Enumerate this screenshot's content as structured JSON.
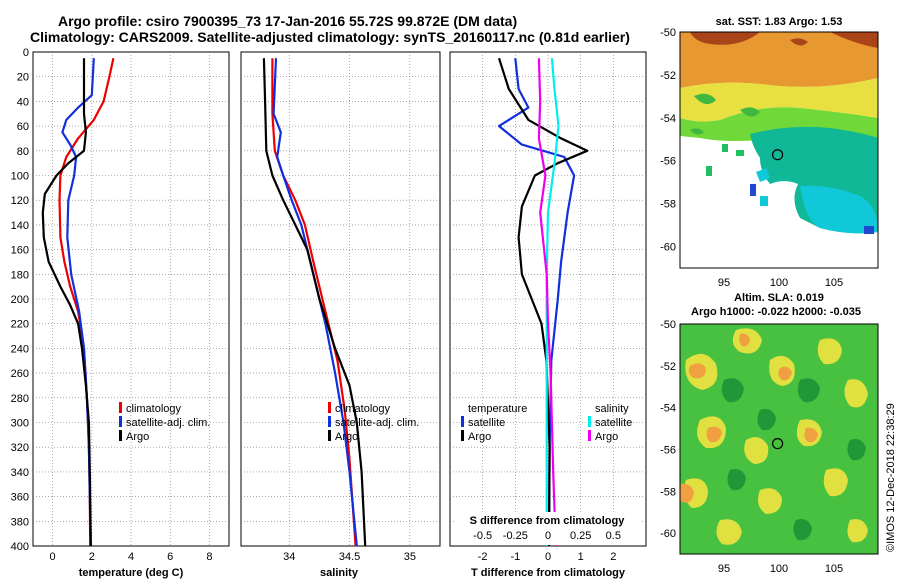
{
  "figure": {
    "title_line1": "Argo profile: csiro 7900395_73 17-Jan-2016 55.72S 99.872E (DM data)",
    "title_line2": "Climatology: CARS2009. Satellite-adjusted climatology: synTS_20160117.nc (0.81d earlier)",
    "credit": "©IMOS 12-Dec-2018 22:38:29"
  },
  "colors": {
    "climatology": "#ee0000",
    "satellite": "#1030dd",
    "argo": "#000000",
    "sat_salinity": "#00eeee",
    "argo_salinity": "#ee00ee"
  },
  "chart_data": [
    {
      "type": "line",
      "name": "temperature-profile",
      "xlabel": "temperature (deg C)",
      "ylabel": "depth",
      "xlim": [
        -1,
        9
      ],
      "ylim": [
        400,
        0
      ],
      "xticks": [
        0,
        2,
        4,
        6,
        8
      ],
      "yticks": [
        0,
        20,
        40,
        60,
        80,
        100,
        120,
        140,
        160,
        180,
        200,
        220,
        240,
        260,
        280,
        300,
        320,
        340,
        360,
        380,
        400
      ],
      "grid": true,
      "legend": [
        "climatology",
        "satellite-adj. clim.",
        "Argo"
      ],
      "series": [
        {
          "name": "climatology",
          "color": "climatology",
          "points": [
            [
              3.1,
              5
            ],
            [
              2.9,
              20
            ],
            [
              2.6,
              40
            ],
            [
              2.1,
              55
            ],
            [
              1.3,
              70
            ],
            [
              0.7,
              85
            ],
            [
              0.4,
              100
            ],
            [
              0.35,
              120
            ],
            [
              0.4,
              150
            ],
            [
              0.6,
              170
            ],
            [
              0.9,
              190
            ],
            [
              1.3,
              210
            ],
            [
              1.6,
              240
            ],
            [
              1.75,
              280
            ],
            [
              1.85,
              320
            ],
            [
              1.9,
              360
            ],
            [
              1.92,
              400
            ]
          ]
        },
        {
          "name": "satellite-adj. clim.",
          "color": "satellite",
          "points": [
            [
              2.1,
              5
            ],
            [
              2.05,
              20
            ],
            [
              2.0,
              35
            ],
            [
              1.3,
              45
            ],
            [
              0.7,
              55
            ],
            [
              0.5,
              65
            ],
            [
              0.9,
              75
            ],
            [
              1.2,
              85
            ],
            [
              1.1,
              100
            ],
            [
              0.8,
              120
            ],
            [
              0.75,
              150
            ],
            [
              0.95,
              180
            ],
            [
              1.35,
              210
            ],
            [
              1.6,
              240
            ],
            [
              1.75,
              280
            ],
            [
              1.85,
              320
            ],
            [
              1.9,
              360
            ],
            [
              1.95,
              400
            ]
          ]
        },
        {
          "name": "Argo",
          "color": "argo",
          "points": [
            [
              1.6,
              5
            ],
            [
              1.6,
              50
            ],
            [
              1.7,
              65
            ],
            [
              1.6,
              80
            ],
            [
              0.8,
              90
            ],
            [
              0.2,
              100
            ],
            [
              -0.4,
              115
            ],
            [
              -0.5,
              130
            ],
            [
              -0.45,
              150
            ],
            [
              -0.2,
              170
            ],
            [
              0.4,
              190
            ],
            [
              0.9,
              205
            ],
            [
              1.3,
              220
            ],
            [
              1.5,
              240
            ],
            [
              1.7,
              270
            ],
            [
              1.85,
              300
            ],
            [
              1.9,
              340
            ],
            [
              1.95,
              400
            ]
          ]
        }
      ]
    },
    {
      "type": "line",
      "name": "salinity-profile",
      "xlabel": "salinity",
      "xlim": [
        33.6,
        35.25
      ],
      "ylim": [
        400,
        0
      ],
      "xticks": [
        34,
        34.5,
        35
      ],
      "xtick_labels": [
        "34",
        "34.5",
        "35"
      ],
      "grid": true,
      "legend": [
        "climatology",
        "satellite-adj. clim.",
        "Argo"
      ],
      "series": [
        {
          "name": "climatology",
          "color": "climatology",
          "points": [
            [
              33.86,
              5
            ],
            [
              33.86,
              50
            ],
            [
              33.88,
              80
            ],
            [
              33.95,
              100
            ],
            [
              34.05,
              120
            ],
            [
              34.13,
              140
            ],
            [
              34.2,
              170
            ],
            [
              34.3,
              210
            ],
            [
              34.4,
              250
            ],
            [
              34.46,
              290
            ],
            [
              34.5,
              330
            ],
            [
              34.55,
              400
            ]
          ]
        },
        {
          "name": "satellite-adj. clim.",
          "color": "satellite",
          "points": [
            [
              33.89,
              5
            ],
            [
              33.87,
              50
            ],
            [
              33.93,
              65
            ],
            [
              33.9,
              85
            ],
            [
              33.95,
              100
            ],
            [
              34.02,
              120
            ],
            [
              34.1,
              140
            ],
            [
              34.2,
              180
            ],
            [
              34.3,
              220
            ],
            [
              34.38,
              260
            ],
            [
              34.45,
              300
            ],
            [
              34.5,
              340
            ],
            [
              34.56,
              400
            ]
          ]
        },
        {
          "name": "Argo",
          "color": "argo",
          "points": [
            [
              33.79,
              5
            ],
            [
              33.8,
              40
            ],
            [
              33.81,
              80
            ],
            [
              33.86,
              100
            ],
            [
              33.95,
              120
            ],
            [
              34.05,
              140
            ],
            [
              34.15,
              160
            ],
            [
              34.25,
              200
            ],
            [
              34.38,
              240
            ],
            [
              34.5,
              270
            ],
            [
              34.56,
              300
            ],
            [
              34.6,
              340
            ],
            [
              34.63,
              400
            ]
          ]
        }
      ]
    },
    {
      "type": "line",
      "name": "difference-profile",
      "xlabel": "T difference from climatology",
      "xlabel2": "S difference from climatology",
      "xlim": [
        -3,
        3
      ],
      "ylim": [
        400,
        0
      ],
      "xticks": [
        -2,
        -1,
        0,
        1,
        2
      ],
      "xtick_labels": [
        "-2",
        "-1",
        "0",
        "1",
        "2"
      ],
      "xticks2": [
        -0.5,
        -0.25,
        0,
        0.25,
        0.5
      ],
      "xtick2_labels": [
        "-0.5",
        "-0.25",
        "0",
        "0.25",
        "0.5"
      ],
      "grid": true,
      "legend_temperature": {
        "title": "temperature",
        "items": [
          "satellite",
          "Argo"
        ]
      },
      "legend_salinity": {
        "title": "salinity",
        "items": [
          "satellite",
          "Argo"
        ]
      },
      "series": [
        {
          "name": "temperature satellite",
          "color": "satellite",
          "points": [
            [
              -1.0,
              5
            ],
            [
              -0.9,
              30
            ],
            [
              -0.6,
              45
            ],
            [
              -1.5,
              60
            ],
            [
              -0.8,
              75
            ],
            [
              0.5,
              85
            ],
            [
              0.8,
              100
            ],
            [
              0.6,
              130
            ],
            [
              0.4,
              170
            ],
            [
              0.3,
              200
            ],
            [
              0.1,
              250
            ],
            [
              0.05,
              320
            ],
            [
              0.03,
              400
            ]
          ]
        },
        {
          "name": "temperature Argo",
          "color": "argo",
          "points": [
            [
              -1.5,
              5
            ],
            [
              -1.2,
              30
            ],
            [
              -0.6,
              55
            ],
            [
              0.4,
              70
            ],
            [
              1.2,
              80
            ],
            [
              0.3,
              90
            ],
            [
              -0.4,
              100
            ],
            [
              -0.8,
              125
            ],
            [
              -0.9,
              150
            ],
            [
              -0.8,
              180
            ],
            [
              -0.5,
              200
            ],
            [
              -0.2,
              220
            ],
            [
              -0.05,
              250
            ],
            [
              0.05,
              320
            ],
            [
              0.03,
              400
            ]
          ]
        },
        {
          "name": "salinity satellite",
          "color": "sat_salinity",
          "points": [
            [
              0.03,
              5
            ],
            [
              0.05,
              30
            ],
            [
              0.08,
              60
            ],
            [
              0.05,
              90
            ],
            [
              0.0,
              130
            ],
            [
              -0.01,
              180
            ],
            [
              -0.01,
              250
            ],
            [
              -0.01,
              400
            ]
          ]
        },
        {
          "name": "salinity Argo",
          "color": "argo_salinity",
          "points": [
            [
              -0.07,
              5
            ],
            [
              -0.06,
              40
            ],
            [
              -0.07,
              70
            ],
            [
              -0.02,
              100
            ],
            [
              -0.06,
              130
            ],
            [
              -0.01,
              180
            ],
            [
              0.0,
              220
            ],
            [
              0.02,
              260
            ],
            [
              0.03,
              300
            ],
            [
              0.04,
              340
            ],
            [
              0.06,
              400
            ]
          ]
        }
      ]
    },
    {
      "type": "heatmap",
      "name": "sst-map",
      "title": "sat. SST: 1.83 Argo: 1.53",
      "xlim": [
        91,
        109
      ],
      "ylim": [
        -61,
        -50
      ],
      "xticks": [
        95,
        100,
        105
      ],
      "yticks": [
        -50,
        -52,
        -54,
        -56,
        -58,
        -60
      ],
      "argo_position": [
        99.872,
        -55.72
      ]
    },
    {
      "type": "heatmap",
      "name": "sla-map",
      "title": "Altim. SLA: 0.019",
      "subtitle": "Argo h1000: -0.022 h2000: -0.035",
      "xlim": [
        91,
        109
      ],
      "ylim": [
        -61,
        -50
      ],
      "xticks": [
        95,
        100,
        105
      ],
      "yticks": [
        -50,
        -52,
        -54,
        -56,
        -58,
        -60
      ],
      "argo_position": [
        99.872,
        -55.72
      ]
    }
  ]
}
